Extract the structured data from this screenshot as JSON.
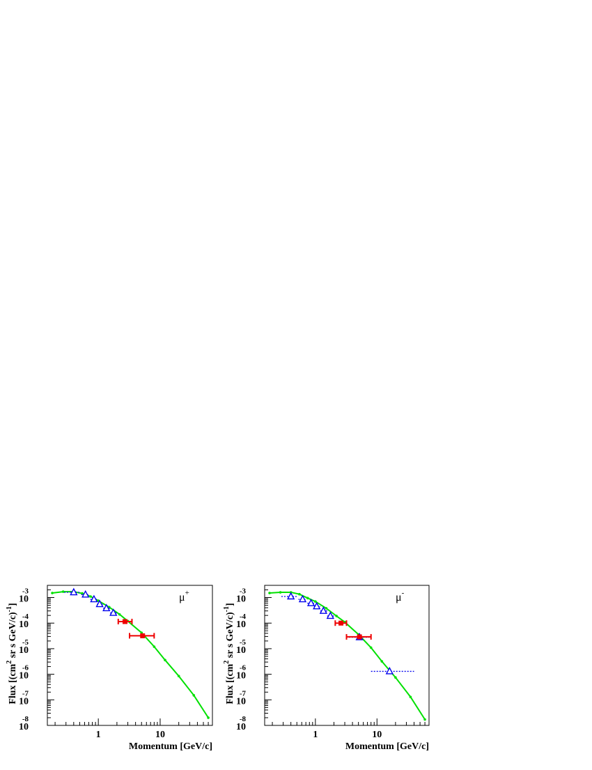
{
  "chart_data": [
    {
      "type": "scatter",
      "panel": "left",
      "label": "μ",
      "label_sup": "+",
      "xlabel": "Momentum [GeV/c]",
      "ylabel": "Flux [(cm",
      "ylabel_sup1": "2",
      "ylabel_mid": " sr s GeV/c)",
      "ylabel_sup2": "-1",
      "ylabel_end": "]",
      "x_scale": "log",
      "y_scale": "log",
      "xlim": [
        0.15,
        70
      ],
      "ylim": [
        1e-08,
        0.003
      ],
      "xticks": [
        {
          "value": 1,
          "label": "1"
        },
        {
          "value": 10,
          "label": "10"
        }
      ],
      "yticks": [
        {
          "value": 0.001,
          "base": "10",
          "exp": "-3"
        },
        {
          "value": 0.0001,
          "base": "10",
          "exp": "-4"
        },
        {
          "value": 1e-05,
          "base": "10",
          "exp": "-5"
        },
        {
          "value": 1e-06,
          "base": "10",
          "exp": "-6"
        },
        {
          "value": 1e-07,
          "base": "10",
          "exp": "-7"
        },
        {
          "value": 1e-08,
          "base": "10",
          "exp": "-8"
        }
      ],
      "series": [
        {
          "style": "line",
          "color": "#00e000",
          "x": [
            0.18,
            0.27,
            0.4,
            0.55,
            0.75,
            1.0,
            1.5,
            2.2,
            3.0,
            5.0,
            8.0,
            12,
            20,
            35,
            60
          ],
          "y": [
            0.0015,
            0.0017,
            0.0017,
            0.00145,
            0.0011,
            0.00075,
            0.00042,
            0.00022,
            0.00012,
            4.2e-05,
            1.2e-05,
            3.6e-06,
            8.5e-07,
            1.5e-07,
            2e-08
          ]
        },
        {
          "style": "triangle",
          "color": "#0000ee",
          "x": [
            0.4,
            0.62,
            0.85,
            1.05,
            1.35,
            1.75
          ],
          "y": [
            0.0016,
            0.0013,
            0.00085,
            0.00055,
            0.00038,
            0.00025
          ],
          "xerr_lo": [
            0.28,
            0.53,
            0.74,
            0.95,
            1.2,
            1.55
          ],
          "xerr_hi": [
            0.52,
            0.72,
            0.95,
            1.2,
            1.55,
            2.0
          ]
        },
        {
          "style": "square",
          "color": "#ee0000",
          "x": [
            2.7,
            5.2
          ],
          "y": [
            0.000115,
            3.2e-05
          ],
          "xerr_lo": [
            2.1,
            3.2
          ],
          "xerr_hi": [
            3.5,
            8.0
          ]
        }
      ]
    },
    {
      "type": "scatter",
      "panel": "right",
      "label": "μ",
      "label_sup": "-",
      "xlabel": "Momentum [GeV/c]",
      "ylabel": "Flux [(cm",
      "ylabel_sup1": "2",
      "ylabel_mid": " sr s GeV/c)",
      "ylabel_sup2": "-1",
      "ylabel_end": "]",
      "x_scale": "log",
      "y_scale": "log",
      "xlim": [
        0.15,
        70
      ],
      "ylim": [
        1e-08,
        0.003
      ],
      "xticks": [
        {
          "value": 1,
          "label": "1"
        },
        {
          "value": 10,
          "label": "10"
        }
      ],
      "yticks": [
        {
          "value": 0.001,
          "base": "10",
          "exp": "-3"
        },
        {
          "value": 0.0001,
          "base": "10",
          "exp": "-4"
        },
        {
          "value": 1e-05,
          "base": "10",
          "exp": "-5"
        },
        {
          "value": 1e-06,
          "base": "10",
          "exp": "-6"
        },
        {
          "value": 1e-07,
          "base": "10",
          "exp": "-7"
        },
        {
          "value": 1e-08,
          "base": "10",
          "exp": "-8"
        }
      ],
      "series": [
        {
          "style": "line",
          "color": "#00e000",
          "x": [
            0.18,
            0.27,
            0.4,
            0.55,
            0.75,
            1.0,
            1.5,
            2.2,
            3.0,
            5.0,
            8.0,
            12,
            20,
            35,
            60
          ],
          "y": [
            0.0015,
            0.0016,
            0.0016,
            0.00135,
            0.00095,
            0.0007,
            0.00038,
            0.00019,
            0.00011,
            3.6e-05,
            1.1e-05,
            3.2e-06,
            7.5e-07,
            1.3e-07,
            1.7e-08
          ]
        },
        {
          "style": "triangle",
          "color": "#0000ee",
          "x": [
            0.4,
            0.62,
            0.85,
            1.05,
            1.35,
            1.75,
            5.2,
            16
          ],
          "y": [
            0.0011,
            0.00085,
            0.0006,
            0.00045,
            0.0003,
            0.00019,
            2.8e-05,
            1.3e-06
          ],
          "xerr_lo": [
            0.28,
            0.53,
            0.74,
            0.95,
            1.2,
            1.55,
            3.5,
            8.0
          ],
          "xerr_hi": [
            0.52,
            0.72,
            0.95,
            1.2,
            1.55,
            2.0,
            7.5,
            40
          ]
        },
        {
          "style": "square",
          "color": "#ee0000",
          "x": [
            2.6,
            5.2
          ],
          "y": [
            0.0001,
            2.9e-05
          ],
          "xerr_lo": [
            2.1,
            3.2
          ],
          "xerr_hi": [
            3.2,
            8.0
          ]
        }
      ]
    }
  ]
}
